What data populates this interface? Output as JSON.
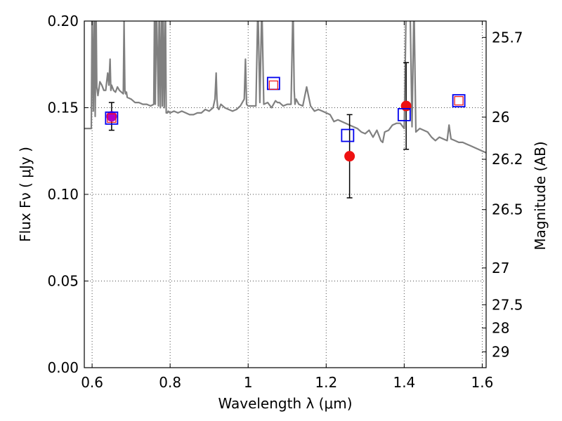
{
  "chart_data": {
    "type": "scatter",
    "xlabel": "Wavelength  λ (μm)",
    "ylabel": "Flux  Fν  ( μJy )",
    "ylabel_right": "Magnitude (AB)",
    "xlim": [
      0.58,
      1.61
    ],
    "ylim": [
      0.0,
      0.2
    ],
    "grid": true,
    "x_ticks": [
      0.6,
      0.8,
      1.0,
      1.2,
      1.4,
      1.6
    ],
    "x_tick_labels": [
      "0.6",
      "0.8",
      "1",
      "1.2",
      "1.4",
      "1.6"
    ],
    "y_ticks": [
      0.0,
      0.05,
      0.1,
      0.15,
      0.2
    ],
    "y_tick_labels": [
      "0.00",
      "0.05",
      "0.10",
      "0.15",
      "0.20"
    ],
    "right_ticks": [
      25.7,
      26,
      26.2,
      26.5,
      27,
      27.5,
      28,
      29
    ],
    "right_tick_labels": [
      "25.7",
      "26",
      "26.2",
      "26.5",
      "27",
      "27.5",
      "28",
      "29"
    ],
    "observed": {
      "x": [
        0.65,
        1.26,
        1.405
      ],
      "y": [
        0.145,
        0.122,
        0.151
      ],
      "err": [
        0.008,
        0.024,
        0.025
      ],
      "colors": [
        "#b000c8",
        "#ee1111",
        "#ee1111"
      ]
    },
    "model_photometry_blue": {
      "x": [
        0.65,
        1.065,
        1.255,
        1.4,
        1.54
      ],
      "y": [
        0.144,
        0.164,
        0.134,
        0.146,
        0.154
      ]
    },
    "model_photometry_red": {
      "x": [
        0.65,
        1.065,
        1.54
      ],
      "y": [
        0.144,
        0.163,
        0.154
      ]
    },
    "spectrum": {
      "color": "#808080",
      "x": [
        0.58,
        0.598,
        0.6,
        0.603,
        0.606,
        0.608,
        0.61,
        0.612,
        0.615,
        0.62,
        0.625,
        0.63,
        0.635,
        0.64,
        0.643,
        0.646,
        0.648,
        0.65,
        0.655,
        0.66,
        0.665,
        0.67,
        0.675,
        0.68,
        0.682,
        0.684,
        0.686,
        0.688,
        0.69,
        0.7,
        0.71,
        0.72,
        0.73,
        0.74,
        0.75,
        0.758,
        0.76,
        0.762,
        0.765,
        0.77,
        0.772,
        0.775,
        0.778,
        0.78,
        0.782,
        0.785,
        0.788,
        0.79,
        0.793,
        0.795,
        0.8,
        0.81,
        0.82,
        0.83,
        0.84,
        0.85,
        0.86,
        0.87,
        0.88,
        0.89,
        0.9,
        0.91,
        0.915,
        0.918,
        0.92,
        0.922,
        0.925,
        0.93,
        0.94,
        0.95,
        0.96,
        0.97,
        0.98,
        0.99,
        0.993,
        0.996,
        1.0,
        1.01,
        1.02,
        1.025,
        1.03,
        1.035,
        1.04,
        1.05,
        1.06,
        1.07,
        1.075,
        1.08,
        1.085,
        1.09,
        1.1,
        1.11,
        1.115,
        1.118,
        1.12,
        1.123,
        1.13,
        1.14,
        1.15,
        1.16,
        1.17,
        1.18,
        1.19,
        1.2,
        1.21,
        1.22,
        1.23,
        1.24,
        1.25,
        1.26,
        1.27,
        1.28,
        1.29,
        1.3,
        1.31,
        1.32,
        1.33,
        1.34,
        1.345,
        1.35,
        1.36,
        1.37,
        1.38,
        1.39,
        1.4,
        1.405,
        1.41,
        1.415,
        1.42,
        1.425,
        1.43,
        1.44,
        1.45,
        1.46,
        1.47,
        1.48,
        1.49,
        1.5,
        1.51,
        1.515,
        1.52,
        1.53,
        1.54,
        1.55,
        1.56,
        1.57,
        1.58,
        1.59,
        1.6,
        1.61
      ],
      "y": [
        0.138,
        0.138,
        0.21,
        0.148,
        0.21,
        0.145,
        0.21,
        0.162,
        0.157,
        0.165,
        0.163,
        0.16,
        0.16,
        0.17,
        0.163,
        0.178,
        0.16,
        0.163,
        0.16,
        0.159,
        0.162,
        0.16,
        0.159,
        0.158,
        0.2,
        0.16,
        0.158,
        0.159,
        0.156,
        0.155,
        0.153,
        0.153,
        0.152,
        0.152,
        0.151,
        0.152,
        0.21,
        0.152,
        0.21,
        0.151,
        0.21,
        0.15,
        0.21,
        0.151,
        0.21,
        0.15,
        0.21,
        0.147,
        0.147,
        0.148,
        0.147,
        0.148,
        0.147,
        0.148,
        0.147,
        0.146,
        0.146,
        0.147,
        0.147,
        0.149,
        0.148,
        0.15,
        0.155,
        0.17,
        0.155,
        0.15,
        0.149,
        0.152,
        0.15,
        0.149,
        0.148,
        0.149,
        0.151,
        0.155,
        0.178,
        0.152,
        0.151,
        0.151,
        0.151,
        0.21,
        0.153,
        0.21,
        0.152,
        0.153,
        0.15,
        0.154,
        0.153,
        0.153,
        0.152,
        0.151,
        0.152,
        0.152,
        0.21,
        0.16,
        0.152,
        0.155,
        0.152,
        0.151,
        0.162,
        0.151,
        0.148,
        0.149,
        0.148,
        0.147,
        0.146,
        0.142,
        0.143,
        0.142,
        0.141,
        0.14,
        0.139,
        0.138,
        0.136,
        0.135,
        0.137,
        0.133,
        0.137,
        0.131,
        0.13,
        0.136,
        0.137,
        0.14,
        0.141,
        0.141,
        0.138,
        0.21,
        0.21,
        0.21,
        0.139,
        0.21,
        0.136,
        0.138,
        0.137,
        0.136,
        0.133,
        0.131,
        0.133,
        0.132,
        0.131,
        0.14,
        0.132,
        0.131,
        0.13,
        0.13,
        0.129,
        0.128,
        0.127,
        0.126,
        0.125,
        0.124
      ]
    }
  }
}
